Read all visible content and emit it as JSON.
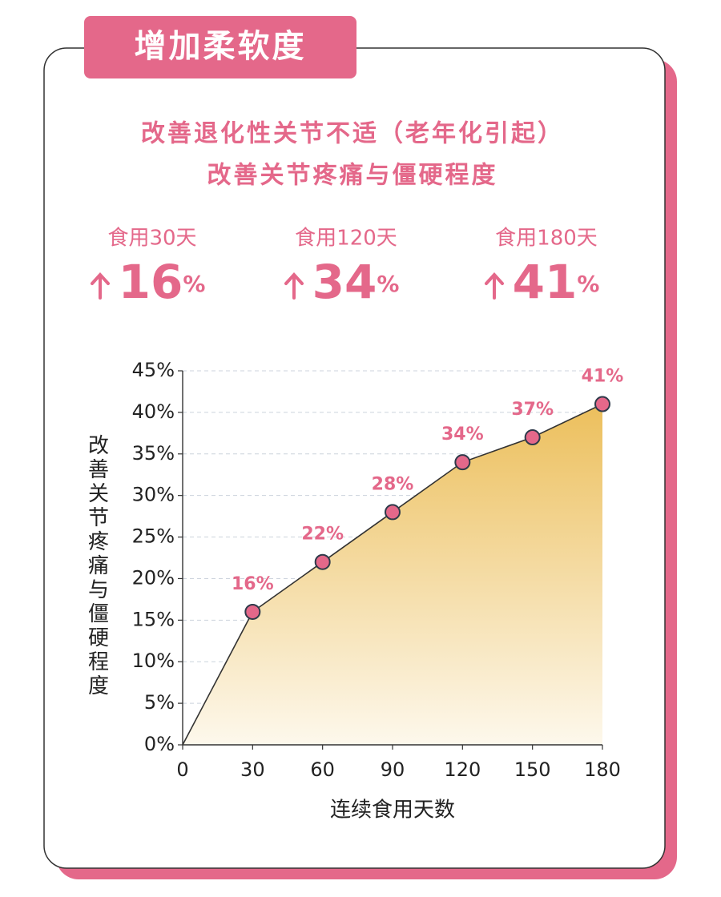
{
  "header": {
    "title": "增加柔软度"
  },
  "subtitle": [
    "改善退化性关节不适（老年化引起）",
    "改善关节疼痛与僵硬程度"
  ],
  "stats": [
    {
      "label": "食用30天",
      "value": "16",
      "unit": "%"
    },
    {
      "label": "食用120天",
      "value": "34",
      "unit": "%"
    },
    {
      "label": "食用180天",
      "value": "41",
      "unit": "%"
    }
  ],
  "chart_data": {
    "type": "area-line",
    "x_label": "连续食用天数",
    "y_label": "改善关节疼痛与僵硬程度",
    "x": [
      0,
      30,
      60,
      90,
      120,
      150,
      180
    ],
    "values": [
      0,
      16,
      22,
      28,
      34,
      37,
      41
    ],
    "value_labels": [
      null,
      "16%",
      "22%",
      "28%",
      "34%",
      "37%",
      "41%"
    ],
    "xlim": [
      0,
      180
    ],
    "xticks": [
      0,
      30,
      60,
      90,
      120,
      150,
      180
    ],
    "ylim": [
      0,
      45
    ],
    "yticks": [
      {
        "value": 0,
        "label": "0%"
      },
      {
        "value": 5,
        "label": "5%"
      },
      {
        "value": 10,
        "label": "10%"
      },
      {
        "value": 15,
        "label": "15%"
      },
      {
        "value": 20,
        "label": "20%"
      },
      {
        "value": 25,
        "label": "25%"
      },
      {
        "value": 30,
        "label": "30%"
      },
      {
        "value": 35,
        "label": "35%"
      },
      {
        "value": 40,
        "label": "40%"
      },
      {
        "value": 45,
        "label": "45%"
      }
    ],
    "grid": true,
    "line_color": "#333333",
    "marker_color": "#e4688a",
    "label_color": "#e4688a",
    "fill_top": "#ecbf5c",
    "fill_bottom": "#fdf8ec"
  }
}
